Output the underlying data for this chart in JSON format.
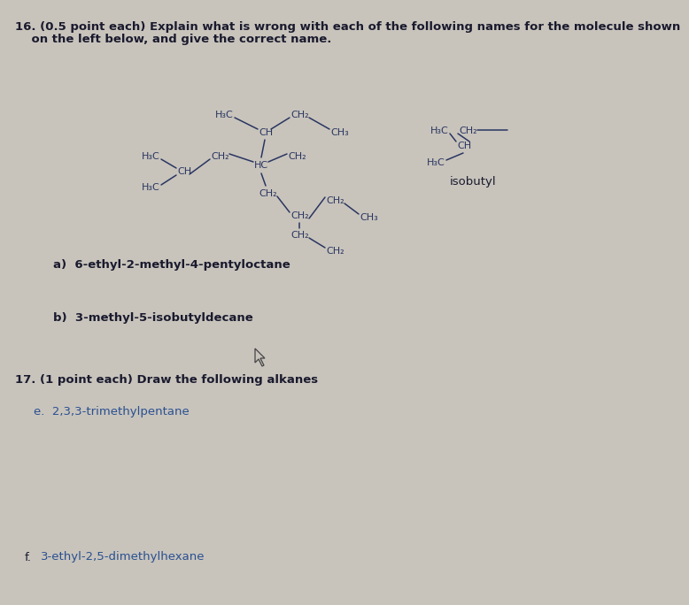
{
  "background_color": "#c8c4bc",
  "title_line1": "16. (0.5 point each) Explain what is wrong with each of the following names for the molecule shown",
  "title_line2": "on the left below, and give the correct name.",
  "part_a_label": "a)  6-ethyl-2-methyl-4-pentyloctane",
  "part_b_label": "b)  3-methyl-5-isobutyldecane",
  "q17_header": "17. (1 point each) Draw the following alkanes",
  "q17_e": "e.  2,3,3-trimethylpentane",
  "q17_f_label": "f.",
  "q17_f_text": "3-ethyl-2,5-dimethylhexane",
  "isobutyl_label": "isobutyl",
  "molecule_color": "#2a3560",
  "text_color": "#1a1a2e",
  "blue_text_color": "#2a5090",
  "font_size_body": 9.5,
  "font_size_mol": 8.0,
  "title_fontsize": 9.5
}
